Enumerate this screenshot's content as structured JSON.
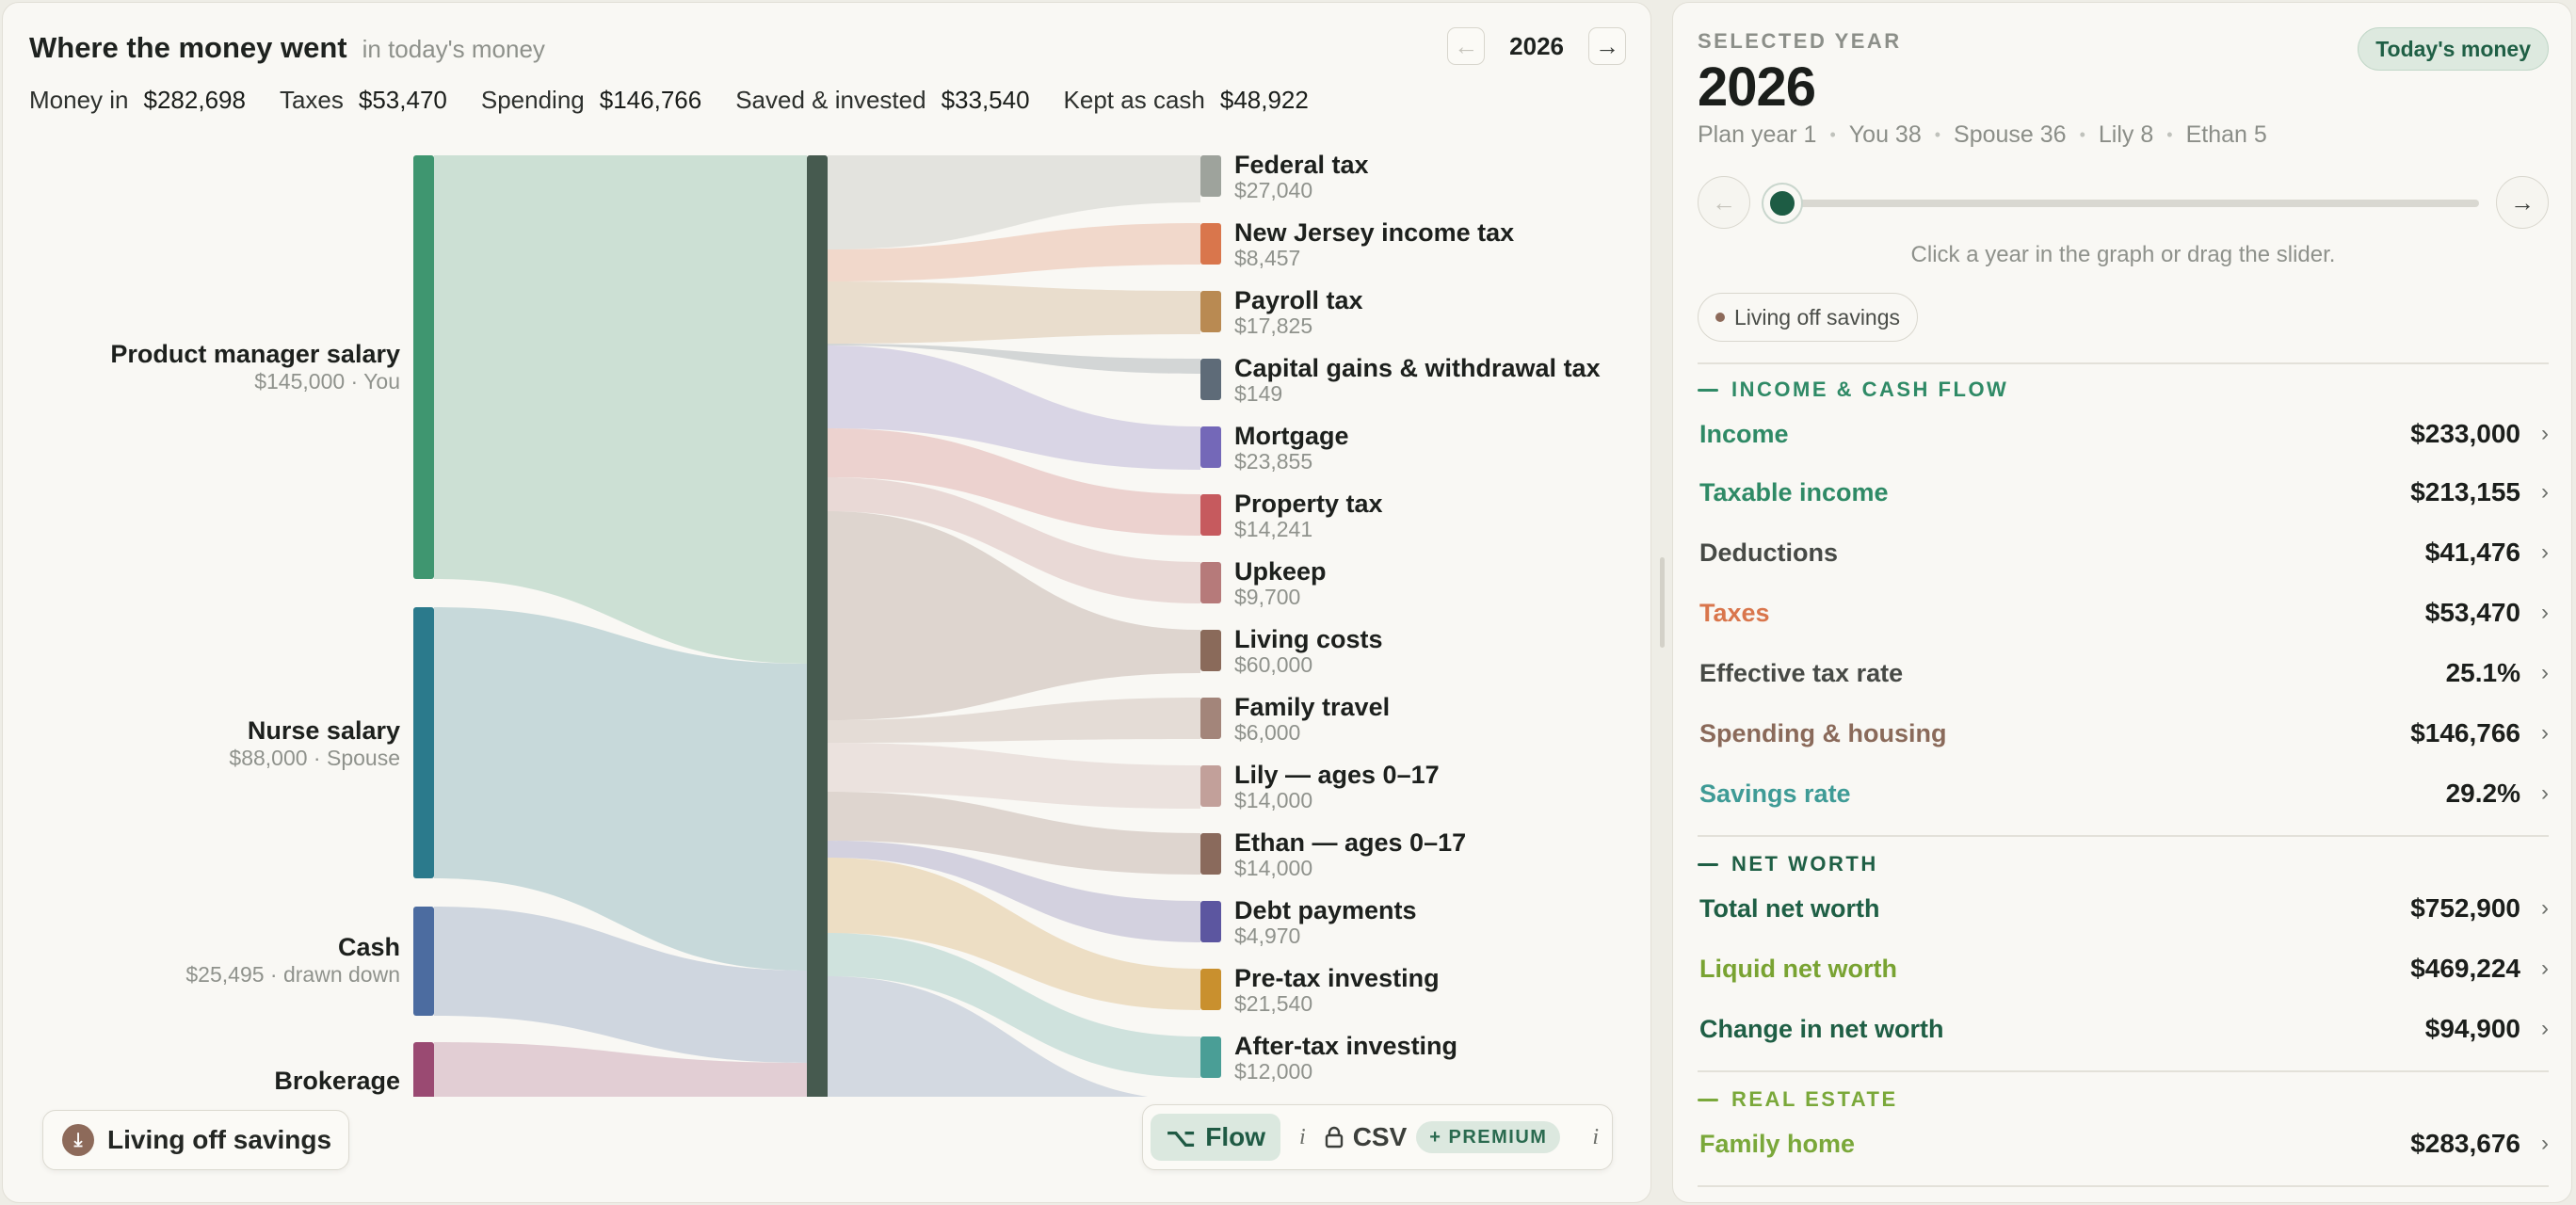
{
  "header": {
    "title": "Where the money went",
    "subtitle": "in today's money",
    "year": "2026",
    "prev_icon": "arrow-left",
    "next_icon": "arrow-right"
  },
  "stats": [
    {
      "label": "Money in",
      "value": "$282,698"
    },
    {
      "label": "Taxes",
      "value": "$53,470"
    },
    {
      "label": "Spending",
      "value": "$146,766"
    },
    {
      "label": "Saved & invested",
      "value": "$33,540"
    },
    {
      "label": "Kept as cash",
      "value": "$48,922"
    }
  ],
  "sankey": {
    "sources": [
      {
        "name": "Product manager salary",
        "sub": "$145,000 · You",
        "color": "#3f9670"
      },
      {
        "name": "Nurse salary",
        "sub": "$88,000 · Spouse",
        "color": "#2b7a8c"
      },
      {
        "name": "Cash",
        "sub": "$25,495 · drawn down",
        "color": "#4c6ca0"
      },
      {
        "name": "Brokerage",
        "sub": "",
        "color": "#9a4a72"
      }
    ],
    "hub_color": "#465a4f",
    "targets": [
      {
        "name": "Federal tax",
        "value": "$27,040",
        "color": "#9ea39c"
      },
      {
        "name": "New Jersey income tax",
        "value": "$8,457",
        "color": "#d9764c"
      },
      {
        "name": "Payroll tax",
        "value": "$17,825",
        "color": "#b98a52"
      },
      {
        "name": "Capital gains & withdrawal tax",
        "value": "$149",
        "color": "#5e6b78"
      },
      {
        "name": "Mortgage",
        "value": "$23,855",
        "color": "#7468b8"
      },
      {
        "name": "Property tax",
        "value": "$14,241",
        "color": "#c65a5e"
      },
      {
        "name": "Upkeep",
        "value": "$9,700",
        "color": "#b67a7a"
      },
      {
        "name": "Living costs",
        "value": "$60,000",
        "color": "#8a6a5a"
      },
      {
        "name": "Family travel",
        "value": "$6,000",
        "color": "#a3857a"
      },
      {
        "name": "Lily — ages 0–17",
        "value": "$14,000",
        "color": "#c2a09a"
      },
      {
        "name": "Ethan — ages 0–17",
        "value": "$14,000",
        "color": "#8a6a5c"
      },
      {
        "name": "Debt payments",
        "value": "$4,970",
        "color": "#5c56a0"
      },
      {
        "name": "Pre-tax investing",
        "value": "$21,540",
        "color": "#c9902e"
      },
      {
        "name": "After-tax investing",
        "value": "$12,000",
        "color": "#4a9e96"
      }
    ]
  },
  "controls": {
    "living_label": "Living off savings",
    "living_icon": "download-circle-icon",
    "flow_label": "Flow",
    "flow_icon": "flow-icon",
    "info_glyph": "i",
    "csv_label": "CSV",
    "csv_icon": "lock-icon",
    "premium_label": "+ PREMIUM"
  },
  "sidebar": {
    "selected_year_label": "SELECTED YEAR",
    "year": "2026",
    "badge": "Today's money",
    "meta": [
      "Plan year 1",
      "You 38",
      "Spouse 36",
      "Lily 8",
      "Ethan 5"
    ],
    "slider_hint": "Click a year in the graph or drag the slider.",
    "slider_position": 0,
    "mode_chip": "Living off savings",
    "sections": [
      {
        "title": "INCOME & CASH FLOW",
        "color": "#2f8a66",
        "rows": [
          {
            "label": "Income",
            "value": "$233,000",
            "color": "#2f8a66"
          },
          {
            "label": "Taxable income",
            "value": "$213,155",
            "color": "#2f8a66"
          },
          {
            "label": "Deductions",
            "value": "$41,476",
            "color": "#474a46"
          },
          {
            "label": "Taxes",
            "value": "$53,470",
            "color": "#d9764c"
          },
          {
            "label": "Effective tax rate",
            "value": "25.1%",
            "color": "#474a46"
          },
          {
            "label": "Spending & housing",
            "value": "$146,766",
            "color": "#8a6a5a"
          },
          {
            "label": "Savings rate",
            "value": "29.2%",
            "color": "#3f9b96"
          }
        ]
      },
      {
        "title": "NET WORTH",
        "color": "#1f5f45",
        "rows": [
          {
            "label": "Total net worth",
            "value": "$752,900",
            "color": "#1f5f45"
          },
          {
            "label": "Liquid net worth",
            "value": "$469,224",
            "color": "#79a332"
          },
          {
            "label": "Change in net worth",
            "value": "$94,900",
            "color": "#1f5f45"
          }
        ]
      },
      {
        "title": "REAL ESTATE",
        "color": "#7aa83a",
        "rows": [
          {
            "label": "Family home",
            "value": "$283,676",
            "color": "#7aa83a"
          }
        ]
      }
    ]
  }
}
